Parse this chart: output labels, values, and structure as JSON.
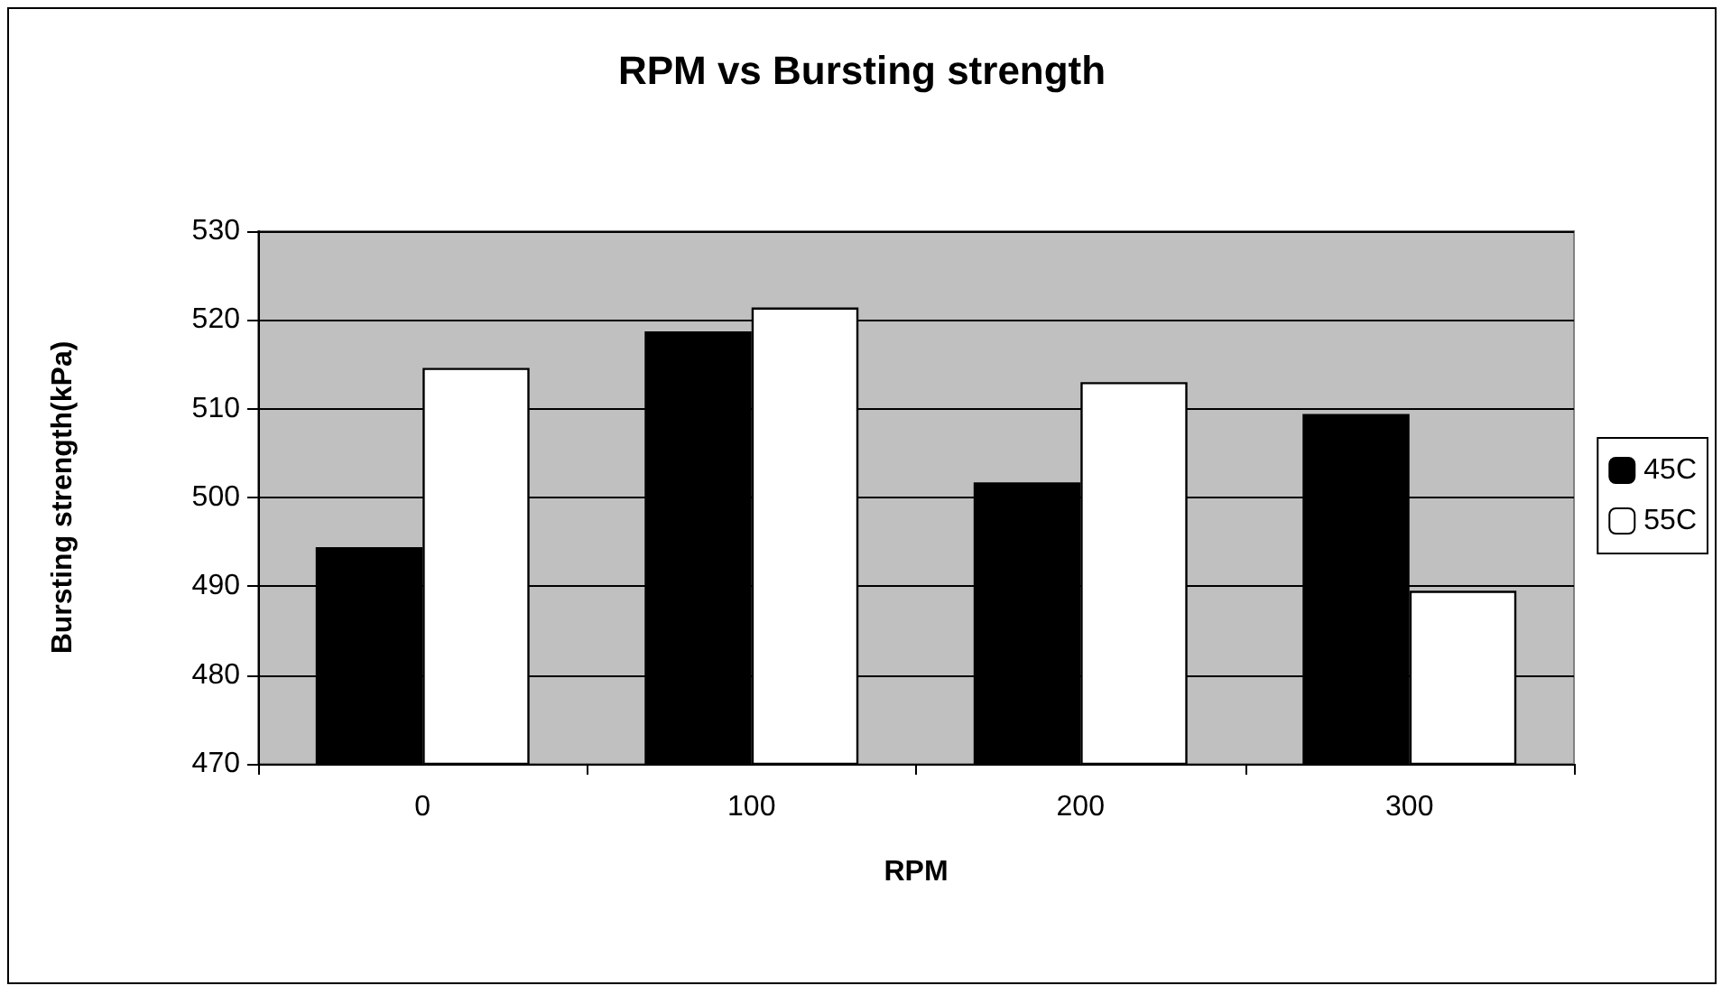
{
  "chart_data": {
    "type": "bar",
    "title": "RPM vs Bursting strength",
    "xlabel": "RPM",
    "ylabel": "Bursting strength(kPa)",
    "categories": [
      "0",
      "100",
      "200",
      "300"
    ],
    "series": [
      {
        "name": "45C",
        "color": "#000000",
        "values": [
          494.4,
          518.7,
          501.7,
          509.4
        ]
      },
      {
        "name": "55C",
        "color": "#ffffff",
        "values": [
          514.6,
          521.4,
          513.0,
          489.5
        ]
      }
    ],
    "ylim": [
      470,
      530
    ],
    "yticks": [
      470,
      480,
      490,
      500,
      510,
      520,
      530
    ],
    "grid": "y",
    "legend": "right"
  }
}
